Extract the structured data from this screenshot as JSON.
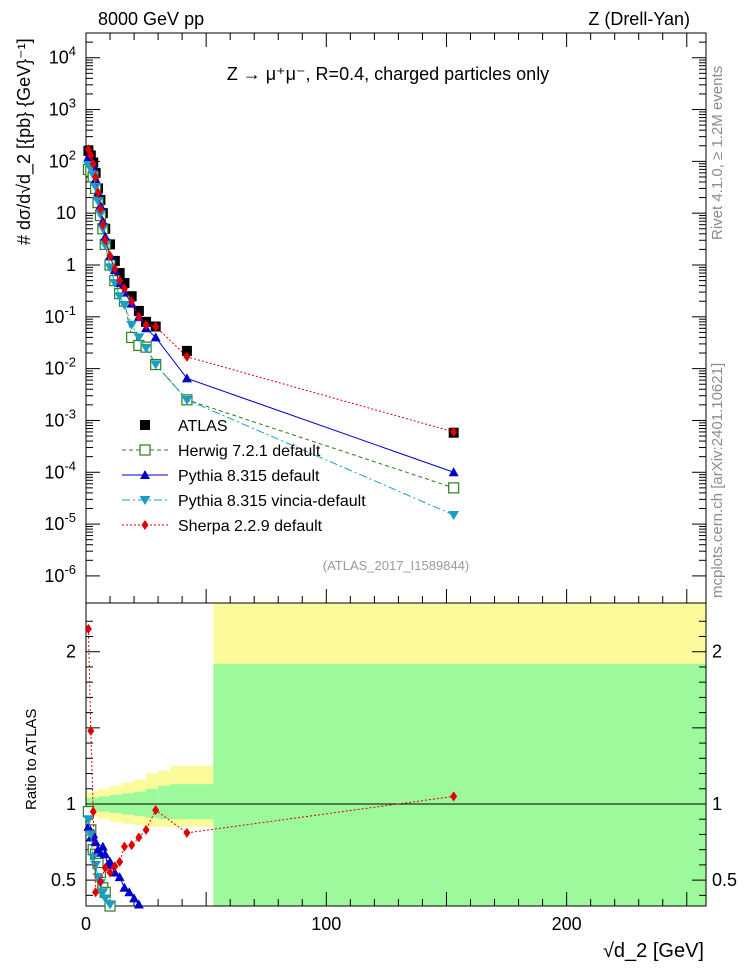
{
  "header": {
    "left": "8000 GeV pp",
    "right": "Z (Drell-Yan)",
    "process": "Z → μ⁺μ⁻, R=0.4, charged particles only"
  },
  "side_labels": {
    "rivet": "Rivet 4.1.0, ≥ 1.2M events",
    "mcplots": "mcplots.cern.ch [arXiv:2401.10621]"
  },
  "watermark": "(ATLAS_2017_I1589844)",
  "colors": {
    "atlas": "#000000",
    "herwig": "#2e7d1e",
    "pythia": "#0000cc",
    "vincia": "#1a9fc4",
    "sherpa": "#e00000",
    "band_inner": "#9cfa9c",
    "band_outer": "#fbfb9c"
  },
  "chart_data": [
    {
      "type": "scatter",
      "name": "main",
      "ylabel": "# dσ/d√d_2 [{pb} {GeV}⁻¹]",
      "xlim": [
        0,
        258
      ],
      "ylim": [
        3e-07,
        30000
      ],
      "yscale": "log",
      "ytick_labels": [
        "10^{-6}",
        "10^{-5}",
        "10^{-4}",
        "10^{-3}",
        "10^{-2}",
        "10^{-1}",
        "1",
        "10",
        "10^{2}",
        "10^{3}",
        "10^{4}"
      ],
      "legend": [
        "ATLAS",
        "Herwig 7.2.1 default",
        "Pythia 8.315 default",
        "Pythia 8.315 vincia-default",
        "Sherpa 2.2.9 default"
      ],
      "legend_position": "lower-left",
      "series": [
        {
          "name": "ATLAS",
          "key": "atlas",
          "x": [
            1,
            2,
            3,
            4,
            5,
            6,
            7,
            8,
            10,
            12,
            14,
            16,
            19,
            22,
            25,
            29,
            42,
            153
          ],
          "y": [
            160,
            130,
            95,
            60,
            30,
            18,
            10,
            5,
            2.5,
            1.2,
            0.7,
            0.45,
            0.25,
            0.13,
            0.08,
            0.065,
            0.022,
            0.00058
          ]
        },
        {
          "name": "Herwig 7.2.1 default",
          "key": "herwig",
          "x": [
            1,
            2,
            3,
            4,
            5,
            6,
            7,
            8,
            10,
            12,
            14,
            16,
            19,
            22,
            25,
            29,
            42,
            153
          ],
          "y": [
            70,
            65,
            50,
            30,
            16,
            9,
            5,
            2.5,
            1.0,
            0.5,
            0.28,
            0.2,
            0.04,
            0.028,
            0.026,
            0.012,
            0.0025,
            5e-05
          ]
        },
        {
          "name": "Pythia 8.315 default",
          "key": "pythia",
          "x": [
            1,
            2,
            3,
            4,
            5,
            6,
            7,
            8,
            10,
            12,
            14,
            16,
            19,
            22,
            25,
            29,
            42,
            153
          ],
          "y": [
            120,
            110,
            80,
            45,
            25,
            14,
            7,
            3.5,
            1.5,
            0.8,
            0.45,
            0.3,
            0.18,
            0.1,
            0.06,
            0.04,
            0.0065,
            0.0001
          ]
        },
        {
          "name": "Pythia 8.315 vincia-default",
          "key": "vincia",
          "x": [
            1,
            2,
            3,
            4,
            5,
            6,
            7,
            8,
            10,
            12,
            14,
            16,
            19,
            22,
            25,
            29,
            42,
            153
          ],
          "y": [
            85,
            75,
            55,
            32,
            17,
            9.5,
            5,
            2.4,
            0.9,
            0.45,
            0.25,
            0.17,
            0.07,
            0.04,
            0.025,
            0.012,
            0.0025,
            1.5e-05
          ]
        },
        {
          "name": "Sherpa 2.2.9 default",
          "key": "sherpa",
          "x": [
            1,
            2,
            3,
            4,
            5,
            6,
            7,
            8,
            10,
            12,
            14,
            16,
            19,
            22,
            25,
            29,
            42,
            153
          ],
          "y": [
            170,
            130,
            90,
            50,
            25,
            12,
            6,
            3,
            1.5,
            0.85,
            0.5,
            0.35,
            0.2,
            0.1,
            0.07,
            0.065,
            0.017,
            0.0006
          ]
        }
      ]
    },
    {
      "type": "scatter",
      "name": "ratio",
      "xlabel": "√d_2 [GeV]",
      "ylabel": "Ratio to ATLAS",
      "xlim": [
        0,
        258
      ],
      "ylim": [
        0.33,
        2.32
      ],
      "xticks": [
        0,
        100,
        200
      ],
      "xtick_labels": [
        "0",
        "100",
        "200"
      ],
      "yticks": [
        0.5,
        1,
        2
      ],
      "ytick_labels": [
        "0.5",
        "1",
        "2"
      ],
      "bands": {
        "x_edges": [
          0,
          5,
          10,
          15,
          20,
          25,
          30,
          35,
          53,
          258
        ],
        "inner_low": [
          0.96,
          0.95,
          0.94,
          0.93,
          0.92,
          0.91,
          0.9,
          0.9,
          0.33
        ],
        "inner_high": [
          1.04,
          1.05,
          1.06,
          1.07,
          1.08,
          1.1,
          1.12,
          1.13,
          1.92
        ],
        "outer_low": [
          0.92,
          0.9,
          0.88,
          0.87,
          0.86,
          0.85,
          0.85,
          0.85,
          0.33
        ],
        "outer_high": [
          1.08,
          1.1,
          1.12,
          1.14,
          1.16,
          1.2,
          1.22,
          1.25,
          2.32
        ]
      },
      "series": [
        {
          "name": "Herwig 7.2.1 default",
          "key": "herwig",
          "x": [
            1,
            2,
            3,
            4,
            5,
            6,
            7,
            8,
            10
          ],
          "y": [
            0.95,
            0.83,
            0.7,
            0.67,
            0.61,
            0.55,
            0.45,
            0.42,
            0.33
          ]
        },
        {
          "name": "Pythia 8.315 default",
          "key": "pythia",
          "x": [
            1,
            2,
            3,
            4,
            5,
            6,
            7,
            8,
            9,
            10,
            12,
            14,
            16,
            18,
            20,
            22
          ],
          "y": [
            0.85,
            0.78,
            0.8,
            0.75,
            0.7,
            0.68,
            0.72,
            0.67,
            0.6,
            0.62,
            0.55,
            0.52,
            0.45,
            0.42,
            0.38,
            0.34
          ]
        },
        {
          "name": "Pythia 8.315 vincia-default",
          "key": "vincia",
          "x": [
            1,
            2,
            3,
            4,
            5,
            6,
            7,
            8,
            10
          ],
          "y": [
            0.9,
            0.8,
            0.65,
            0.6,
            0.52,
            0.48,
            0.42,
            0.38,
            0.34
          ]
        },
        {
          "name": "Sherpa 2.2.9 default",
          "key": "sherpa",
          "x": [
            1,
            2,
            3,
            4,
            6,
            8,
            10,
            12,
            14,
            16,
            19,
            22,
            25,
            29,
            42,
            153
          ],
          "y": [
            2.15,
            1.48,
            0.95,
            0.42,
            0.49,
            0.58,
            0.55,
            0.59,
            0.62,
            0.72,
            0.73,
            0.78,
            0.83,
            0.96,
            0.81,
            1.05
          ]
        }
      ]
    }
  ]
}
